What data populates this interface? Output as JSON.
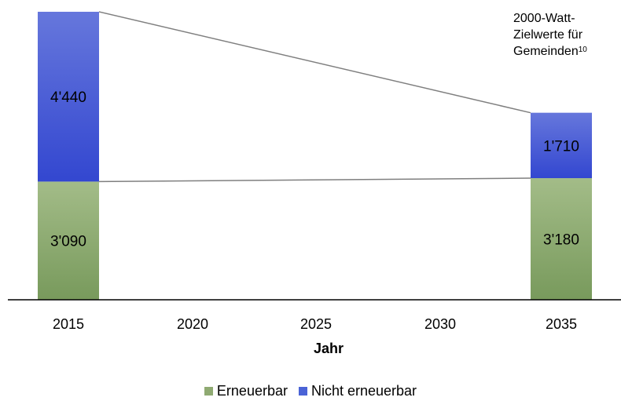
{
  "chart_data": {
    "type": "bar",
    "stacked": true,
    "categories": [
      "2015",
      "2020",
      "2025",
      "2030",
      "2035"
    ],
    "xlabel": "Jahr",
    "ylabel": "",
    "ylim": [
      0,
      7530
    ],
    "grid": false,
    "legend_position": "bottom",
    "series": [
      {
        "name": "Erneuerbar",
        "values": [
          3090,
          null,
          null,
          null,
          3180
        ],
        "labels": [
          "3'090",
          "",
          "",
          "",
          "3'180"
        ],
        "color": "#8FAA72"
      },
      {
        "name": "Nicht erneuerbar",
        "values": [
          4440,
          null,
          null,
          null,
          1710
        ],
        "labels": [
          "4'440",
          "",
          "",
          "",
          "1'710"
        ],
        "color": "#4A63D6"
      }
    ],
    "connector_color": "#7f7f7f",
    "annotation": {
      "text": "2000-Watt-Zielwerte für Gemeinden",
      "superscript": "10"
    }
  }
}
